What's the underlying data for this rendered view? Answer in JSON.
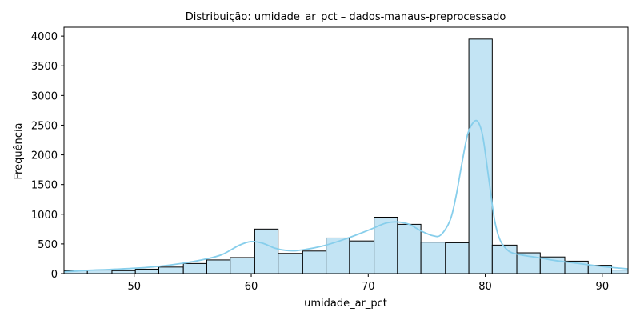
{
  "chart_data": {
    "type": "bar",
    "title": "Distribuição: umidade_ar_pct – dados-manaus-preprocessado",
    "xlabel": "umidade_ar_pct",
    "ylabel": "Frequência",
    "xlim": [
      44.0,
      92.2
    ],
    "ylim": [
      0,
      4150
    ],
    "xticks": [
      50,
      60,
      70,
      80,
      90
    ],
    "yticks": [
      0,
      500,
      1000,
      1500,
      2000,
      2500,
      3000,
      3500,
      4000
    ],
    "grid": false,
    "legend": "none",
    "bin_edges": [
      44.0,
      46.0,
      48.1,
      50.1,
      52.1,
      54.2,
      56.2,
      58.2,
      60.3,
      62.3,
      64.4,
      66.4,
      68.4,
      70.5,
      72.5,
      74.5,
      76.6,
      78.6,
      80.6,
      82.7,
      84.7,
      86.8,
      88.8,
      90.8,
      92.2
    ],
    "counts": [
      50,
      60,
      50,
      75,
      110,
      170,
      230,
      270,
      750,
      340,
      380,
      600,
      550,
      950,
      830,
      530,
      520,
      3950,
      480,
      350,
      280,
      210,
      140,
      60
    ],
    "kde": {
      "x": [
        44,
        46,
        48,
        50,
        52,
        54,
        56,
        57.5,
        59,
        60,
        61,
        62,
        63,
        64,
        66,
        68,
        70,
        71.5,
        72.5,
        73.5,
        74.5,
        75.5,
        76.2,
        77,
        77.5,
        78,
        78.5,
        79,
        79.4,
        79.8,
        80.3,
        80.8,
        81.3,
        82,
        82.7,
        83.5,
        84.5,
        86,
        88,
        90,
        92.2
      ],
      "y": [
        30,
        55,
        70,
        90,
        120,
        170,
        240,
        320,
        480,
        540,
        510,
        430,
        390,
        390,
        460,
        580,
        730,
        850,
        870,
        830,
        720,
        640,
        650,
        900,
        1300,
        1850,
        2350,
        2550,
        2550,
        2300,
        1600,
        900,
        550,
        380,
        330,
        300,
        270,
        220,
        170,
        120,
        80
      ]
    },
    "colors": {
      "bar_fill": "#c3e4f4",
      "bar_stroke": "#000000",
      "kde_line": "#87ceeb"
    }
  }
}
